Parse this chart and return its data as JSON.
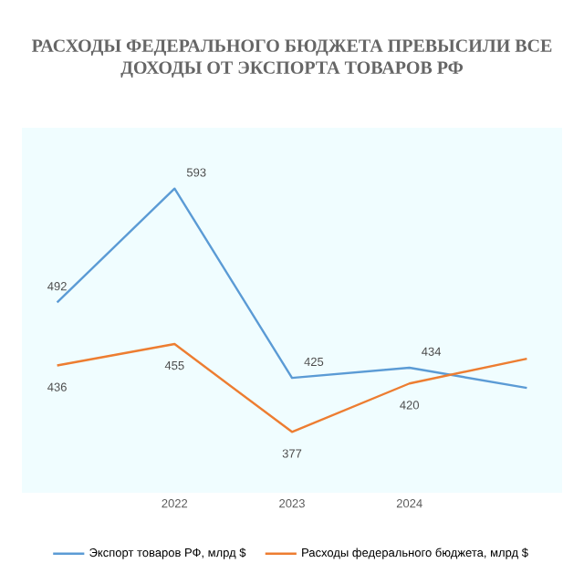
{
  "chart_data": {
    "type": "line",
    "title": "РАСХОДЫ ФЕДЕРАЛЬНОГО БЮДЖЕТА ПРЕВЫСИЛИ ВСЕ ДОХОДЫ ОТ ЭКСПОРТА ТОВАРОВ РФ",
    "categories": [
      null,
      "2022",
      "2023",
      "2024",
      null
    ],
    "series": [
      {
        "name": "Экспорт товаров РФ, млрд $",
        "color": "#5b9bd5",
        "values": [
          492,
          593,
          425,
          434,
          416
        ],
        "value_labels": [
          "492",
          "593",
          "425",
          "434",
          null
        ]
      },
      {
        "name": "Расходы федерального бюджета, млрд $",
        "color": "#ed7d31",
        "values": [
          436,
          455,
          377,
          420,
          442
        ],
        "value_labels": [
          "436",
          "455",
          "377",
          "420",
          null
        ]
      }
    ],
    "legend": "bottom",
    "line_style": "solid"
  }
}
